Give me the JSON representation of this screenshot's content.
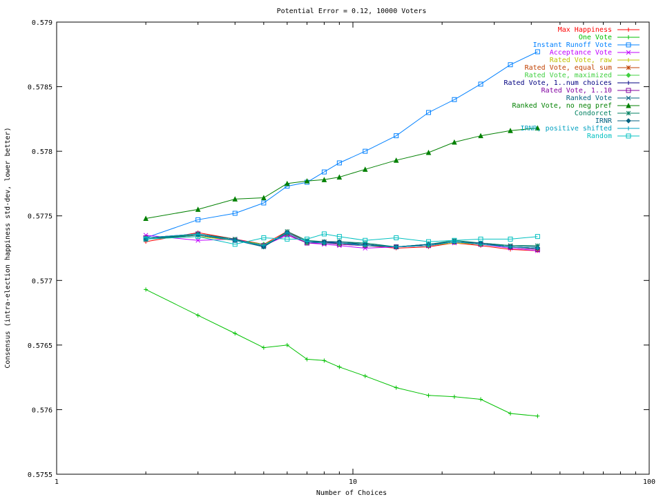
{
  "chart_data": {
    "type": "line",
    "title": "Potential Error = 0.12, 10000 Voters",
    "xlabel": "Number of Choices",
    "ylabel": "Consensus (intra-election happiness std-dev, lower better)",
    "x_scale": "log",
    "xlim": [
      1,
      100
    ],
    "ylim": [
      0.5755,
      0.579
    ],
    "x_ticks": [
      1,
      10,
      100
    ],
    "x_tick_labels": [
      "1",
      "10",
      "100"
    ],
    "y_ticks": [
      0.5755,
      0.576,
      0.5765,
      0.577,
      0.5775,
      0.578,
      0.5785,
      0.579
    ],
    "y_tick_labels": [
      "0.5755",
      "0.576",
      "0.5765",
      "0.577",
      "0.5775",
      "0.578",
      "0.5785",
      "0.579"
    ],
    "grid": false,
    "legend_position": "top-right",
    "x": [
      2,
      3,
      4,
      5,
      6,
      7,
      8,
      9,
      11,
      14,
      18,
      22,
      27,
      34,
      42
    ],
    "series": [
      {
        "name": "Max Happiness",
        "color": "#ff0000",
        "marker": "plus",
        "values": [
          0.5773,
          0.57737,
          0.57732,
          0.57728,
          0.57738,
          0.5773,
          0.5773,
          0.57728,
          0.57727,
          0.57725,
          0.57726,
          0.57729,
          0.57727,
          0.57724,
          0.57723
        ]
      },
      {
        "name": "One Vote",
        "color": "#00c000",
        "marker": "plus",
        "values": [
          0.57693,
          0.57673,
          0.57659,
          0.57648,
          0.5765,
          0.57639,
          0.57638,
          0.57633,
          0.57626,
          0.57617,
          0.57611,
          0.5761,
          0.57608,
          0.57597,
          0.57595
        ]
      },
      {
        "name": "Instant Runoff Vote",
        "color": "#0080ff",
        "marker": "square",
        "values": [
          0.57733,
          0.57747,
          0.57752,
          0.5776,
          0.57773,
          0.57776,
          0.57784,
          0.57791,
          0.578,
          0.57812,
          0.5783,
          0.5784,
          0.57852,
          0.57867,
          0.57877
        ]
      },
      {
        "name": "Acceptance Vote",
        "color": "#c000ff",
        "marker": "x",
        "values": [
          0.57735,
          0.57731,
          0.57732,
          0.57727,
          0.57735,
          0.57729,
          0.57728,
          0.57727,
          0.57725,
          0.57726,
          0.57727,
          0.57729,
          0.57728,
          0.57725,
          0.57723
        ]
      },
      {
        "name": "Rated Vote, raw",
        "color": "#c0c000",
        "marker": "plus",
        "values": [
          0.57732,
          0.57734,
          0.57731,
          0.57728,
          0.57736,
          0.57729,
          0.57729,
          0.57729,
          0.57727,
          0.57726,
          0.57727,
          0.57729,
          0.57728,
          0.57726,
          0.57725
        ]
      },
      {
        "name": "Rated Vote, equal sum",
        "color": "#c04000",
        "marker": "star",
        "values": [
          0.57732,
          0.57735,
          0.57731,
          0.57727,
          0.57737,
          0.5773,
          0.5773,
          0.57729,
          0.57728,
          0.57726,
          0.57727,
          0.5773,
          0.57728,
          0.57726,
          0.57724
        ]
      },
      {
        "name": "Rated Vote, maximized",
        "color": "#40d040",
        "marker": "diamond",
        "values": [
          0.57733,
          0.57735,
          0.57731,
          0.57728,
          0.57736,
          0.57729,
          0.57729,
          0.57728,
          0.57727,
          0.57726,
          0.57727,
          0.5773,
          0.57728,
          0.57726,
          0.57725
        ]
      },
      {
        "name": "Rated Vote, 1..num choices",
        "color": "#000080",
        "marker": "plus",
        "values": [
          0.57733,
          0.57736,
          0.57731,
          0.57727,
          0.57737,
          0.5773,
          0.5773,
          0.57729,
          0.57727,
          0.57726,
          0.57727,
          0.5773,
          0.57729,
          0.57726,
          0.57725
        ]
      },
      {
        "name": "Rated Vote, 1..10",
        "color": "#8000a0",
        "marker": "square",
        "values": [
          0.57733,
          0.57736,
          0.57731,
          0.57727,
          0.57736,
          0.57729,
          0.57729,
          0.57728,
          0.57727,
          0.57726,
          0.57727,
          0.5773,
          0.57728,
          0.57726,
          0.57724
        ]
      },
      {
        "name": "Ranked Vote",
        "color": "#006080",
        "marker": "x",
        "values": [
          0.57732,
          0.57736,
          0.57732,
          0.57726,
          0.57737,
          0.5773,
          0.57729,
          0.57729,
          0.57728,
          0.57726,
          0.57728,
          0.5773,
          0.57729,
          0.57727,
          0.57726
        ]
      },
      {
        "name": "Ranked Vote, no neg pref",
        "color": "#008000",
        "marker": "triangle",
        "values": [
          0.57748,
          0.57755,
          0.57763,
          0.57764,
          0.57775,
          0.57777,
          0.57778,
          0.5778,
          0.57786,
          0.57793,
          0.57799,
          0.57807,
          0.57812,
          0.57816,
          0.57818
        ]
      },
      {
        "name": "Condorcet",
        "color": "#008060",
        "marker": "star",
        "values": [
          0.57732,
          0.57736,
          0.57732,
          0.57726,
          0.57738,
          0.57731,
          0.5773,
          0.5773,
          0.57729,
          0.57726,
          0.57728,
          0.57731,
          0.57729,
          0.57727,
          0.57727
        ]
      },
      {
        "name": "IRNR",
        "color": "#006080",
        "marker": "diamond",
        "values": [
          0.57732,
          0.57735,
          0.57731,
          0.57726,
          0.57737,
          0.5773,
          0.5773,
          0.5773,
          0.57728,
          0.57726,
          0.57728,
          0.5773,
          0.57729,
          0.57726,
          0.57725
        ]
      },
      {
        "name": "IRNR, positive shifted",
        "color": "#00a0c0",
        "marker": "plus",
        "values": [
          0.57733,
          0.57736,
          0.57731,
          0.57727,
          0.57737,
          0.5773,
          0.57729,
          0.57729,
          0.57727,
          0.57726,
          0.57727,
          0.5773,
          0.57728,
          0.57726,
          0.57725
        ]
      },
      {
        "name": "Random",
        "color": "#00c0c0",
        "marker": "square",
        "values": [
          0.57732,
          0.57734,
          0.57728,
          0.57733,
          0.57732,
          0.57732,
          0.57736,
          0.57734,
          0.57731,
          0.57733,
          0.5773,
          0.57731,
          0.57732,
          0.57732,
          0.57734
        ]
      }
    ]
  }
}
